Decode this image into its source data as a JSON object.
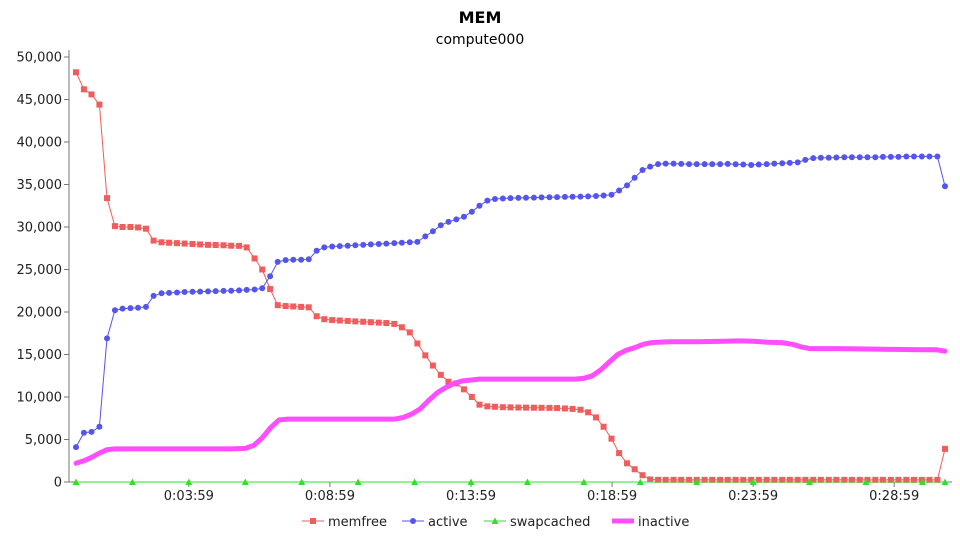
{
  "chart_data": {
    "type": "line",
    "title": "MEM",
    "subtitle": "compute000",
    "xlabel": "",
    "ylabel": "",
    "x_ticks": [
      "0:03:59",
      "0:08:59",
      "0:13:59",
      "0:18:59",
      "0:23:59",
      "0:28:59"
    ],
    "x_tick_positions_min": [
      4,
      9,
      14,
      19,
      24,
      29
    ],
    "xlim_min": [
      0,
      30.8
    ],
    "ylim": [
      0,
      50000
    ],
    "y_ticks": [
      "0",
      "5,000",
      "10,000",
      "15,000",
      "20,000",
      "25,000",
      "30,000",
      "35,000",
      "40,000",
      "45,000",
      "50,000"
    ],
    "y_tick_values": [
      0,
      5000,
      10000,
      15000,
      20000,
      25000,
      30000,
      35000,
      40000,
      45000,
      50000
    ],
    "legend_position": "bottom",
    "grid": false,
    "series": [
      {
        "name": "memfree",
        "color": "#f25c5c",
        "marker": "square",
        "points": [
          [
            0.0,
            48200
          ],
          [
            0.28,
            46200
          ],
          [
            0.55,
            45600
          ],
          [
            0.83,
            44400
          ],
          [
            1.1,
            33400
          ],
          [
            1.38,
            30100
          ],
          [
            1.65,
            30000
          ],
          [
            1.93,
            30000
          ],
          [
            2.2,
            29950
          ],
          [
            2.48,
            29800
          ],
          [
            2.75,
            28400
          ],
          [
            3.03,
            28200
          ],
          [
            3.3,
            28150
          ],
          [
            3.58,
            28100
          ],
          [
            3.85,
            28050
          ],
          [
            4.13,
            28000
          ],
          [
            4.4,
            27950
          ],
          [
            4.68,
            27900
          ],
          [
            4.95,
            27880
          ],
          [
            5.23,
            27850
          ],
          [
            5.5,
            27800
          ],
          [
            5.78,
            27780
          ],
          [
            6.05,
            27600
          ],
          [
            6.33,
            26300
          ],
          [
            6.6,
            25000
          ],
          [
            6.88,
            22700
          ],
          [
            7.15,
            20800
          ],
          [
            7.43,
            20700
          ],
          [
            7.7,
            20650
          ],
          [
            7.98,
            20600
          ],
          [
            8.25,
            20550
          ],
          [
            8.53,
            19500
          ],
          [
            8.8,
            19150
          ],
          [
            9.08,
            19050
          ],
          [
            9.35,
            19000
          ],
          [
            9.63,
            18950
          ],
          [
            9.9,
            18900
          ],
          [
            10.18,
            18850
          ],
          [
            10.45,
            18800
          ],
          [
            10.73,
            18750
          ],
          [
            11.0,
            18700
          ],
          [
            11.28,
            18600
          ],
          [
            11.55,
            18200
          ],
          [
            11.83,
            17600
          ],
          [
            12.1,
            16300
          ],
          [
            12.38,
            14900
          ],
          [
            12.65,
            13700
          ],
          [
            12.93,
            12600
          ],
          [
            13.2,
            11800
          ],
          [
            13.48,
            11600
          ],
          [
            13.75,
            10900
          ],
          [
            14.03,
            10000
          ],
          [
            14.3,
            9100
          ],
          [
            14.58,
            8900
          ],
          [
            14.85,
            8850
          ],
          [
            15.13,
            8800
          ],
          [
            15.4,
            8780
          ],
          [
            15.68,
            8760
          ],
          [
            15.95,
            8750
          ],
          [
            16.23,
            8740
          ],
          [
            16.5,
            8730
          ],
          [
            16.78,
            8720
          ],
          [
            17.05,
            8700
          ],
          [
            17.33,
            8650
          ],
          [
            17.6,
            8600
          ],
          [
            17.88,
            8500
          ],
          [
            18.15,
            8200
          ],
          [
            18.43,
            7600
          ],
          [
            18.7,
            6500
          ],
          [
            18.98,
            5100
          ],
          [
            19.25,
            3400
          ],
          [
            19.53,
            2200
          ],
          [
            19.8,
            1500
          ],
          [
            20.08,
            800
          ],
          [
            20.35,
            300
          ],
          [
            20.63,
            250
          ],
          [
            20.9,
            250
          ],
          [
            21.18,
            250
          ],
          [
            21.45,
            250
          ],
          [
            21.73,
            250
          ],
          [
            22.0,
            250
          ],
          [
            22.28,
            250
          ],
          [
            22.55,
            250
          ],
          [
            22.83,
            250
          ],
          [
            23.1,
            250
          ],
          [
            23.38,
            250
          ],
          [
            23.65,
            250
          ],
          [
            23.93,
            250
          ],
          [
            24.2,
            250
          ],
          [
            24.48,
            250
          ],
          [
            24.75,
            250
          ],
          [
            25.03,
            250
          ],
          [
            25.3,
            250
          ],
          [
            25.58,
            250
          ],
          [
            25.85,
            250
          ],
          [
            26.13,
            250
          ],
          [
            26.4,
            250
          ],
          [
            26.68,
            250
          ],
          [
            26.95,
            250
          ],
          [
            27.23,
            250
          ],
          [
            27.5,
            250
          ],
          [
            27.78,
            250
          ],
          [
            28.05,
            250
          ],
          [
            28.33,
            250
          ],
          [
            28.6,
            250
          ],
          [
            28.88,
            250
          ],
          [
            29.15,
            250
          ],
          [
            29.43,
            250
          ],
          [
            29.7,
            250
          ],
          [
            29.98,
            250
          ],
          [
            30.25,
            250
          ],
          [
            30.53,
            250
          ],
          [
            30.8,
            3900
          ]
        ]
      },
      {
        "name": "active",
        "color": "#5555ee",
        "marker": "circle",
        "points": [
          [
            0.0,
            4100
          ],
          [
            0.28,
            5800
          ],
          [
            0.55,
            5900
          ],
          [
            0.83,
            6500
          ],
          [
            1.1,
            16900
          ],
          [
            1.38,
            20200
          ],
          [
            1.65,
            20400
          ],
          [
            1.93,
            20450
          ],
          [
            2.2,
            20500
          ],
          [
            2.48,
            20600
          ],
          [
            2.75,
            21900
          ],
          [
            3.03,
            22200
          ],
          [
            3.3,
            22250
          ],
          [
            3.58,
            22300
          ],
          [
            3.85,
            22350
          ],
          [
            4.13,
            22380
          ],
          [
            4.4,
            22400
          ],
          [
            4.68,
            22420
          ],
          [
            4.95,
            22450
          ],
          [
            5.23,
            22480
          ],
          [
            5.5,
            22500
          ],
          [
            5.78,
            22550
          ],
          [
            6.05,
            22600
          ],
          [
            6.33,
            22650
          ],
          [
            6.6,
            22800
          ],
          [
            6.88,
            24200
          ],
          [
            7.15,
            25900
          ],
          [
            7.43,
            26100
          ],
          [
            7.7,
            26150
          ],
          [
            7.98,
            26150
          ],
          [
            8.25,
            26200
          ],
          [
            8.53,
            27200
          ],
          [
            8.8,
            27600
          ],
          [
            9.08,
            27700
          ],
          [
            9.35,
            27750
          ],
          [
            9.63,
            27800
          ],
          [
            9.9,
            27850
          ],
          [
            10.18,
            27900
          ],
          [
            10.45,
            27950
          ],
          [
            10.73,
            28000
          ],
          [
            11.0,
            28050
          ],
          [
            11.28,
            28100
          ],
          [
            11.55,
            28150
          ],
          [
            11.83,
            28200
          ],
          [
            12.1,
            28250
          ],
          [
            12.38,
            28900
          ],
          [
            12.65,
            29500
          ],
          [
            12.93,
            30200
          ],
          [
            13.2,
            30600
          ],
          [
            13.48,
            30900
          ],
          [
            13.75,
            31200
          ],
          [
            14.03,
            31800
          ],
          [
            14.3,
            32500
          ],
          [
            14.58,
            33100
          ],
          [
            14.85,
            33300
          ],
          [
            15.13,
            33350
          ],
          [
            15.4,
            33400
          ],
          [
            15.68,
            33420
          ],
          [
            15.95,
            33440
          ],
          [
            16.23,
            33460
          ],
          [
            16.5,
            33480
          ],
          [
            16.78,
            33500
          ],
          [
            17.05,
            33520
          ],
          [
            17.33,
            33540
          ],
          [
            17.6,
            33560
          ],
          [
            17.88,
            33580
          ],
          [
            18.15,
            33600
          ],
          [
            18.43,
            33650
          ],
          [
            18.7,
            33700
          ],
          [
            18.98,
            33800
          ],
          [
            19.25,
            34300
          ],
          [
            19.53,
            34900
          ],
          [
            19.8,
            35800
          ],
          [
            20.08,
            36700
          ],
          [
            20.35,
            37100
          ],
          [
            20.63,
            37400
          ],
          [
            20.9,
            37450
          ],
          [
            21.18,
            37450
          ],
          [
            21.45,
            37420
          ],
          [
            21.73,
            37400
          ],
          [
            22.0,
            37400
          ],
          [
            22.28,
            37400
          ],
          [
            22.55,
            37400
          ],
          [
            22.83,
            37400
          ],
          [
            23.1,
            37420
          ],
          [
            23.38,
            37380
          ],
          [
            23.65,
            37350
          ],
          [
            23.93,
            37300
          ],
          [
            24.2,
            37350
          ],
          [
            24.48,
            37400
          ],
          [
            24.75,
            37450
          ],
          [
            25.03,
            37500
          ],
          [
            25.3,
            37550
          ],
          [
            25.58,
            37600
          ],
          [
            25.85,
            37900
          ],
          [
            26.13,
            38100
          ],
          [
            26.4,
            38150
          ],
          [
            26.68,
            38150
          ],
          [
            26.95,
            38180
          ],
          [
            27.23,
            38200
          ],
          [
            27.5,
            38200
          ],
          [
            27.78,
            38200
          ],
          [
            28.05,
            38200
          ],
          [
            28.33,
            38200
          ],
          [
            28.6,
            38250
          ],
          [
            28.88,
            38250
          ],
          [
            29.15,
            38250
          ],
          [
            29.43,
            38300
          ],
          [
            29.7,
            38300
          ],
          [
            29.98,
            38300
          ],
          [
            30.25,
            38300
          ],
          [
            30.53,
            38300
          ],
          [
            30.8,
            34800
          ]
        ]
      },
      {
        "name": "swapcached",
        "color": "#33dd33",
        "marker": "triangle",
        "points": [
          [
            0,
            0
          ],
          [
            2,
            0
          ],
          [
            4,
            0
          ],
          [
            6,
            0
          ],
          [
            8,
            0
          ],
          [
            10,
            0
          ],
          [
            12,
            0
          ],
          [
            14,
            0
          ],
          [
            16,
            0
          ],
          [
            18,
            0
          ],
          [
            20,
            0
          ],
          [
            22,
            0
          ],
          [
            24,
            0
          ],
          [
            26,
            0
          ],
          [
            28,
            0
          ],
          [
            30,
            0
          ],
          [
            30.8,
            0
          ]
        ]
      },
      {
        "name": "inactive",
        "color": "#ff4dff",
        "marker": "thick-line",
        "points": [
          [
            0.0,
            2200
          ],
          [
            0.28,
            2500
          ],
          [
            0.55,
            2900
          ],
          [
            0.83,
            3400
          ],
          [
            1.1,
            3800
          ],
          [
            1.38,
            3900
          ],
          [
            1.65,
            3900
          ],
          [
            2.5,
            3900
          ],
          [
            3.5,
            3900
          ],
          [
            4.5,
            3900
          ],
          [
            5.5,
            3900
          ],
          [
            6.0,
            3950
          ],
          [
            6.3,
            4300
          ],
          [
            6.6,
            5200
          ],
          [
            6.9,
            6400
          ],
          [
            7.2,
            7300
          ],
          [
            7.5,
            7400
          ],
          [
            8.5,
            7400
          ],
          [
            9.5,
            7400
          ],
          [
            10.5,
            7400
          ],
          [
            11.3,
            7400
          ],
          [
            11.6,
            7600
          ],
          [
            11.9,
            8000
          ],
          [
            12.2,
            8600
          ],
          [
            12.5,
            9600
          ],
          [
            12.8,
            10500
          ],
          [
            13.1,
            11100
          ],
          [
            13.4,
            11600
          ],
          [
            13.7,
            11900
          ],
          [
            14.0,
            12000
          ],
          [
            14.3,
            12100
          ],
          [
            15.0,
            12100
          ],
          [
            16.0,
            12100
          ],
          [
            17.0,
            12100
          ],
          [
            17.7,
            12100
          ],
          [
            18.0,
            12200
          ],
          [
            18.3,
            12500
          ],
          [
            18.6,
            13200
          ],
          [
            18.9,
            14100
          ],
          [
            19.2,
            15000
          ],
          [
            19.5,
            15500
          ],
          [
            19.8,
            15800
          ],
          [
            20.1,
            16200
          ],
          [
            20.4,
            16400
          ],
          [
            21.0,
            16500
          ],
          [
            22.0,
            16500
          ],
          [
            23.0,
            16550
          ],
          [
            23.5,
            16600
          ],
          [
            24.0,
            16550
          ],
          [
            24.5,
            16450
          ],
          [
            25.0,
            16400
          ],
          [
            25.4,
            16200
          ],
          [
            25.7,
            15900
          ],
          [
            26.0,
            15700
          ],
          [
            27.0,
            15700
          ],
          [
            28.0,
            15650
          ],
          [
            29.0,
            15600
          ],
          [
            30.0,
            15550
          ],
          [
            30.5,
            15550
          ],
          [
            30.8,
            15400
          ]
        ]
      }
    ]
  }
}
